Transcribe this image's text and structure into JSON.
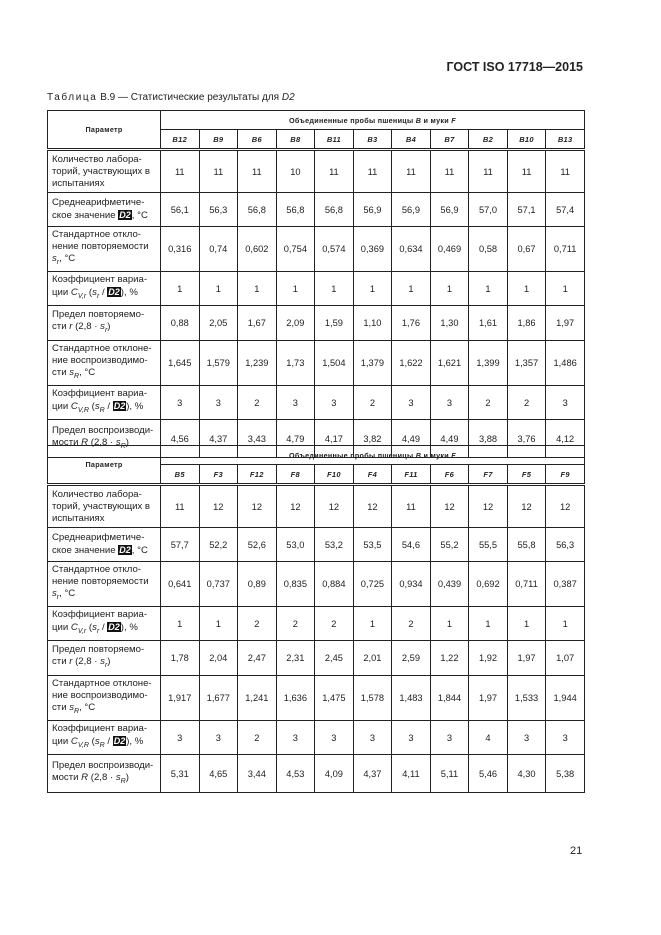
{
  "header": {
    "doc_id": "ГОСТ ISO 17718—2015"
  },
  "caption": {
    "prefix": "Таблица",
    "number": "В.9",
    "text": "— Статистические результаты для ",
    "var": "D2"
  },
  "param_label": "Параметр",
  "group_label": [
    {
      "t": "Объединенные пробы пшеницы "
    },
    {
      "t": "B",
      "s": "i"
    },
    {
      "t": " и муки "
    },
    {
      "t": "F",
      "s": "i"
    }
  ],
  "row_labels": [
    [
      {
        "t": "Количество лабора-торий, участвующих в испытаниях"
      }
    ],
    [
      {
        "t": "Среднеарифметиче-ское значение "
      },
      {
        "t": "D2",
        "s": "ol"
      },
      {
        "t": ", °C"
      }
    ],
    [
      {
        "t": "Стандартное откло-нение повторяемости "
      },
      {
        "t": "s",
        "s": "i"
      },
      {
        "t": "r",
        "s": "sub"
      },
      {
        "t": ", °C"
      }
    ],
    [
      {
        "t": "Коэффициент вариа-ции "
      },
      {
        "t": "C",
        "s": "i"
      },
      {
        "t": "V,r",
        "s": "sub"
      },
      {
        "t": " ("
      },
      {
        "t": "s",
        "s": "i"
      },
      {
        "t": "r",
        "s": "sub"
      },
      {
        "t": " / "
      },
      {
        "t": "D2",
        "s": "ol"
      },
      {
        "t": "), %"
      }
    ],
    [
      {
        "t": "Предел повторяемо-сти "
      },
      {
        "t": "r",
        "s": "i"
      },
      {
        "t": " (2,8 · "
      },
      {
        "t": "s",
        "s": "i"
      },
      {
        "t": "r",
        "s": "sub"
      },
      {
        "t": ")"
      }
    ],
    [
      {
        "t": "Стандартное отклоне-ние воспроизводимо-сти "
      },
      {
        "t": "s",
        "s": "i"
      },
      {
        "t": "R",
        "s": "sub"
      },
      {
        "t": ", °C"
      }
    ],
    [
      {
        "t": "Коэффициент вариа-ции "
      },
      {
        "t": "C",
        "s": "i"
      },
      {
        "t": "V,R",
        "s": "sub"
      },
      {
        "t": " ("
      },
      {
        "t": "s",
        "s": "i"
      },
      {
        "t": "R",
        "s": "sub"
      },
      {
        "t": " / "
      },
      {
        "t": "D2",
        "s": "ol"
      },
      {
        "t": "), %"
      }
    ],
    [
      {
        "t": "Предел воспроизводи-мости "
      },
      {
        "t": "R",
        "s": "i"
      },
      {
        "t": " (2,8 · "
      },
      {
        "t": "s",
        "s": "i"
      },
      {
        "t": "R",
        "s": "sub"
      },
      {
        "t": ")"
      }
    ]
  ],
  "tables": [
    {
      "columns": [
        "B12",
        "B9",
        "B6",
        "B8",
        "B11",
        "B3",
        "B4",
        "B7",
        "B2",
        "B10",
        "B13"
      ],
      "rows": [
        [
          "11",
          "11",
          "11",
          "10",
          "11",
          "11",
          "11",
          "11",
          "11",
          "11",
          "11"
        ],
        [
          "56,1",
          "56,3",
          "56,8",
          "56,8",
          "56,8",
          "56,9",
          "56,9",
          "56,9",
          "57,0",
          "57,1",
          "57,4"
        ],
        [
          "0,316",
          "0,74",
          "0,602",
          "0,754",
          "0,574",
          "0,369",
          "0,634",
          "0,469",
          "0,58",
          "0,67",
          "0,711"
        ],
        [
          "1",
          "1",
          "1",
          "1",
          "1",
          "1",
          "1",
          "1",
          "1",
          "1",
          "1"
        ],
        [
          "0,88",
          "2,05",
          "1,67",
          "2,09",
          "1,59",
          "1,10",
          "1,76",
          "1,30",
          "1,61",
          "1,86",
          "1,97"
        ],
        [
          "1,645",
          "1,579",
          "1,239",
          "1,73",
          "1,504",
          "1,379",
          "1,622",
          "1,621",
          "1,399",
          "1,357",
          "1,486"
        ],
        [
          "3",
          "3",
          "2",
          "3",
          "3",
          "2",
          "3",
          "3",
          "2",
          "2",
          "3"
        ],
        [
          "4,56",
          "4,37",
          "3,43",
          "4,79",
          "4,17",
          "3,82",
          "4,49",
          "4,49",
          "3,88",
          "3,76",
          "4,12"
        ]
      ]
    },
    {
      "columns": [
        "B5",
        "F3",
        "F12",
        "F8",
        "F10",
        "F4",
        "F11",
        "F6",
        "F7",
        "F5",
        "F9"
      ],
      "rows": [
        [
          "11",
          "12",
          "12",
          "12",
          "12",
          "12",
          "11",
          "12",
          "12",
          "12",
          "12"
        ],
        [
          "57,7",
          "52,2",
          "52,6",
          "53,0",
          "53,2",
          "53,5",
          "54,6",
          "55,2",
          "55,5",
          "55,8",
          "56,3"
        ],
        [
          "0,641",
          "0,737",
          "0,89",
          "0,835",
          "0,884",
          "0,725",
          "0,934",
          "0,439",
          "0,692",
          "0,711",
          "0,387"
        ],
        [
          "1",
          "1",
          "2",
          "2",
          "2",
          "1",
          "2",
          "1",
          "1",
          "1",
          "1"
        ],
        [
          "1,78",
          "2,04",
          "2,47",
          "2,31",
          "2,45",
          "2,01",
          "2,59",
          "1,22",
          "1,92",
          "1,97",
          "1,07"
        ],
        [
          "1,917",
          "1,677",
          "1,241",
          "1,636",
          "1,475",
          "1,578",
          "1,483",
          "1,844",
          "1,97",
          "1,533",
          "1,944"
        ],
        [
          "3",
          "3",
          "2",
          "3",
          "3",
          "3",
          "3",
          "3",
          "4",
          "3",
          "3"
        ],
        [
          "5,31",
          "4,65",
          "3,44",
          "4,53",
          "4,09",
          "4,37",
          "4,11",
          "5,11",
          "5,46",
          "4,30",
          "5,38"
        ]
      ]
    }
  ],
  "footer": {
    "page_number": "21"
  }
}
